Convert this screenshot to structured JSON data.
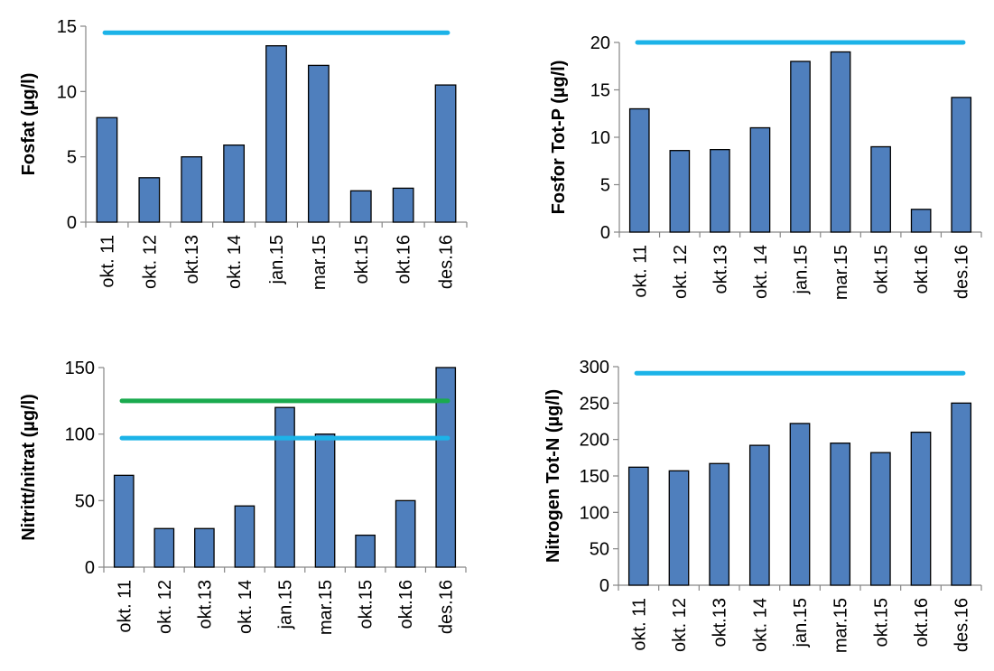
{
  "chart_data": [
    {
      "type": "bar",
      "ylabel": "Fosfat (µg/l)",
      "categories": [
        "okt. 11",
        "okt. 12",
        "okt.13",
        "okt. 14",
        "jan.15",
        "mar.15",
        "okt.15",
        "okt.16",
        "des.16"
      ],
      "values": [
        8.0,
        3.4,
        5.0,
        5.9,
        13.5,
        12.0,
        2.4,
        2.6,
        10.5
      ],
      "ylim": [
        0,
        15
      ],
      "yticks": [
        0,
        5,
        10,
        15
      ],
      "reference_lines": [
        {
          "y": 14.5,
          "color": "#1cb3e8"
        }
      ],
      "bar_color": "#4f7fbd"
    },
    {
      "type": "bar",
      "ylabel": "Fosfor Tot-P (µg/l)",
      "categories": [
        "okt. 11",
        "okt. 12",
        "okt.13",
        "okt. 14",
        "jan.15",
        "mar.15",
        "okt.15",
        "okt.16",
        "des.16"
      ],
      "values": [
        13.0,
        8.6,
        8.7,
        11.0,
        18.0,
        19.0,
        9.0,
        2.4,
        14.2
      ],
      "ylim": [
        0,
        20
      ],
      "yticks": [
        0,
        5,
        10,
        15,
        20
      ],
      "reference_lines": [
        {
          "y": 20,
          "color": "#1cb3e8"
        }
      ],
      "bar_color": "#4f7fbd"
    },
    {
      "type": "bar",
      "ylabel": "Nitritt/nitrat (µg/l)",
      "categories": [
        "okt. 11",
        "okt. 12",
        "okt.13",
        "okt. 14",
        "jan.15",
        "mar.15",
        "okt.15",
        "okt.16",
        "des.16"
      ],
      "values": [
        69,
        29,
        29,
        46,
        120,
        100,
        24,
        50,
        150
      ],
      "ylim": [
        0,
        150
      ],
      "yticks": [
        0,
        50,
        100,
        150
      ],
      "reference_lines": [
        {
          "y": 125,
          "color": "#1aaa4e"
        },
        {
          "y": 97,
          "color": "#1cb3e8"
        }
      ],
      "bar_color": "#4f7fbd"
    },
    {
      "type": "bar",
      "ylabel": "Nitrogen Tot-N (µg/l)",
      "categories": [
        "okt. 11",
        "okt. 12",
        "okt.13",
        "okt. 14",
        "jan.15",
        "mar.15",
        "okt.15",
        "okt.16",
        "des.16"
      ],
      "values": [
        162,
        157,
        167,
        192,
        222,
        195,
        182,
        210,
        250
      ],
      "ylim": [
        0,
        300
      ],
      "yticks": [
        0,
        50,
        100,
        150,
        200,
        250,
        300
      ],
      "reference_lines": [
        {
          "y": 291,
          "color": "#1cb3e8"
        }
      ],
      "bar_color": "#4f7fbd"
    }
  ]
}
